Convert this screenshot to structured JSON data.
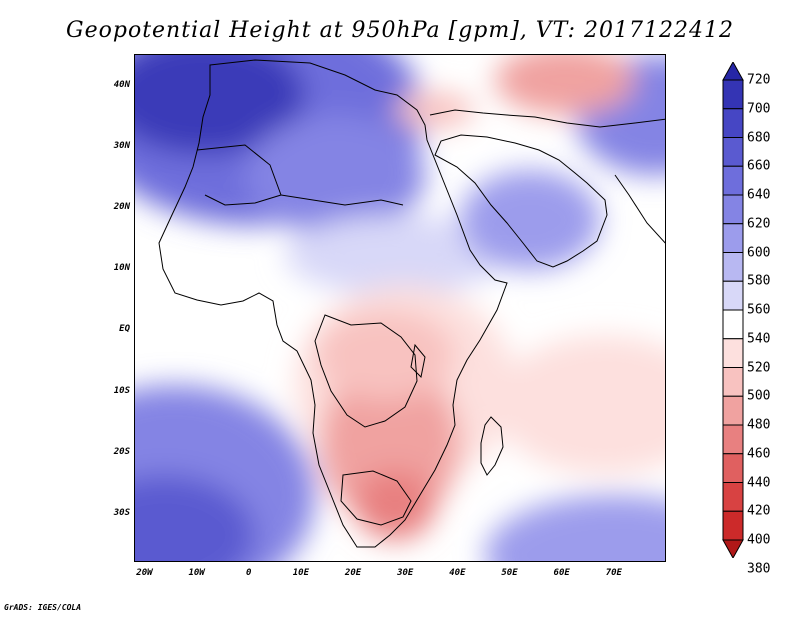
{
  "title": "Geopotential Height at 950hPa [gpm], VT: 2017122412",
  "credit": "GrADS: IGES/COLA",
  "map": {
    "lon_range": [
      -22,
      80
    ],
    "lat_range": [
      -38,
      45
    ],
    "lat_ticks": [
      "40N",
      "30N",
      "20N",
      "10N",
      "EQ",
      "10S",
      "20S",
      "30S"
    ],
    "lat_tick_values": [
      40,
      30,
      20,
      10,
      0,
      -10,
      -20,
      -30
    ],
    "lon_ticks": [
      "20W",
      "10W",
      "0",
      "10E",
      "20E",
      "30E",
      "40E",
      "50E",
      "60E",
      "70E"
    ],
    "lon_tick_values": [
      -20,
      -10,
      0,
      10,
      20,
      30,
      40,
      50,
      60,
      70
    ]
  },
  "colorbar": {
    "levels": [
      "720",
      "700",
      "680",
      "660",
      "640",
      "620",
      "600",
      "580",
      "560",
      "540",
      "520",
      "500",
      "480",
      "460",
      "440",
      "420",
      "400",
      "380"
    ],
    "colors": [
      "#2626a6",
      "#3434b4",
      "#4646c4",
      "#5a5ad0",
      "#6e6edc",
      "#8484e4",
      "#9c9cec",
      "#b8b8f2",
      "#d8d8f8",
      "#ffffff",
      "#fde0de",
      "#f8c2c0",
      "#f0a2a0",
      "#e88080",
      "#e06060",
      "#d84242",
      "#cc2a2a",
      "#b01818"
    ]
  }
}
